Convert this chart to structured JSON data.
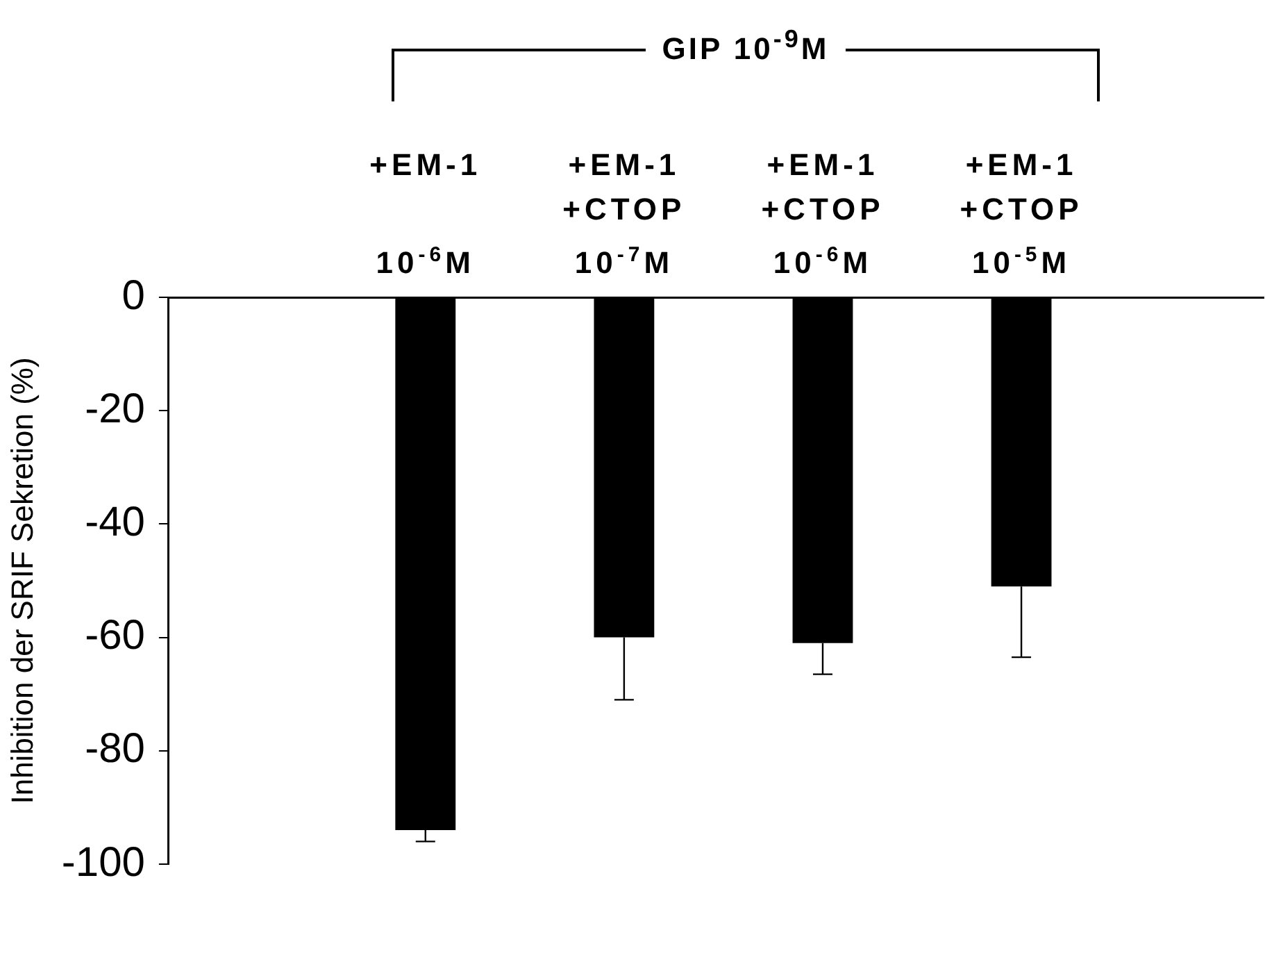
{
  "chart_data": {
    "type": "bar",
    "title": "GIP 10$^{-9}$M",
    "ylabel": "Inhibition der SRIF Sekretion (%)",
    "categories": [
      "+EM-1\n10$^{-6}$M",
      "+EM-1\n+CTOP\n10$^{-7}$M",
      "+EM-1\n+CTOP\n10$^{-6}$M",
      "+EM-1\n+CTOP\n10$^{-5}$M"
    ],
    "values": [
      -94,
      -60,
      -61,
      -51
    ],
    "color": "#000000",
    "errors": [
      [
        -96,
        -94
      ],
      [
        -71,
        -60
      ],
      [
        -66.5,
        -61
      ],
      [
        -63.5,
        -51
      ]
    ],
    "ylim": [
      -100,
      0
    ],
    "yticks": [
      -100,
      -80,
      -60,
      -40,
      -20,
      0
    ],
    "grid": false,
    "legend": false
  }
}
